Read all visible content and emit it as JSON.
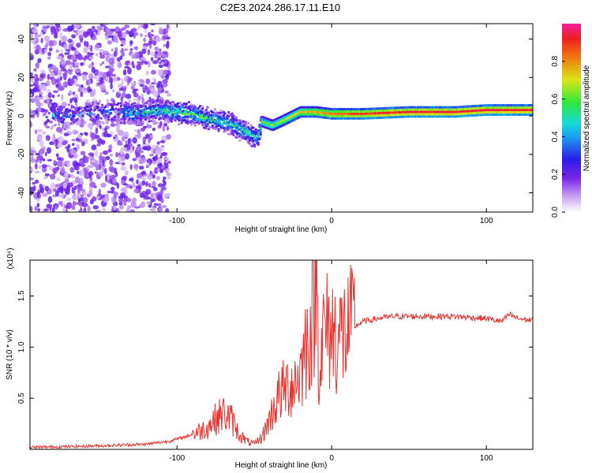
{
  "title": "C2E3.2024.286.17.11.E10",
  "chart_data": [
    {
      "type": "heatmap",
      "xlabel": "Height of straight line (km)",
      "ylabel": "Frequency (Hz)",
      "xlim": [
        -195,
        130
      ],
      "ylim": [
        -50,
        48
      ],
      "xticks": [
        -100,
        0,
        100
      ],
      "yticks": [
        -40,
        -20,
        0,
        20,
        40
      ],
      "colorbar": {
        "label": "Normalized spectral amplitude",
        "ticks": [
          "0.0",
          "0.2",
          "0.4",
          "0.6",
          "0.8"
        ],
        "tick_values": [
          0.0,
          0.2,
          0.4,
          0.6,
          0.8
        ],
        "range": [
          0,
          1
        ]
      },
      "ridge": [
        {
          "x": -170,
          "y": 0,
          "amp": 0.35
        },
        {
          "x": -150,
          "y": 2,
          "amp": 0.3
        },
        {
          "x": -125,
          "y": 2,
          "amp": 0.45
        },
        {
          "x": -110,
          "y": 3,
          "amp": 0.5
        },
        {
          "x": -95,
          "y": 2,
          "amp": 0.55
        },
        {
          "x": -85,
          "y": 0,
          "amp": 0.55
        },
        {
          "x": -75,
          "y": -2,
          "amp": 0.5
        },
        {
          "x": -65,
          "y": -4,
          "amp": 0.5
        },
        {
          "x": -55,
          "y": -8,
          "amp": 0.5
        },
        {
          "x": -48,
          "y": -12,
          "amp": 0.45
        },
        {
          "x": -45,
          "y": -3,
          "amp": 0.6
        },
        {
          "x": -38,
          "y": -5,
          "amp": 0.65
        },
        {
          "x": -30,
          "y": -2,
          "amp": 0.7
        },
        {
          "x": -20,
          "y": 2,
          "amp": 0.75
        },
        {
          "x": -10,
          "y": 2,
          "amp": 0.8
        },
        {
          "x": 0,
          "y": 1,
          "amp": 0.85
        },
        {
          "x": 20,
          "y": 1,
          "amp": 0.9
        },
        {
          "x": 50,
          "y": 2,
          "amp": 0.95
        },
        {
          "x": 80,
          "y": 2,
          "amp": 0.95
        },
        {
          "x": 100,
          "y": 3,
          "amp": 0.95
        },
        {
          "x": 130,
          "y": 3,
          "amp": 0.95
        }
      ]
    },
    {
      "type": "line",
      "xlabel": "Height of straight line (km)",
      "ylabel": "SNR (10 * v/v)",
      "multiplier": "(x10⁴)",
      "xlim": [
        -195,
        130
      ],
      "ylim": [
        0,
        1.85
      ],
      "xticks": [
        -100,
        0,
        100
      ],
      "yticks": [
        0.5,
        1.0,
        1.5
      ],
      "ytick_labels": [
        "0.5",
        "1.0",
        "1.5"
      ],
      "color": "#e8322e",
      "x": [
        -195,
        -160,
        -140,
        -120,
        -105,
        -95,
        -85,
        -80,
        -75,
        -70,
        -65,
        -60,
        -55,
        -50,
        -45,
        -40,
        -35,
        -30,
        -25,
        -20,
        -17,
        -15,
        -12,
        -10,
        -8,
        -5,
        0,
        5,
        10,
        20,
        30,
        40,
        60,
        80,
        100,
        110,
        115,
        120,
        125,
        130
      ],
      "y": [
        0.02,
        0.03,
        0.04,
        0.05,
        0.08,
        0.12,
        0.18,
        0.22,
        0.3,
        0.35,
        0.3,
        0.15,
        0.08,
        0.05,
        0.12,
        0.3,
        0.5,
        0.6,
        0.65,
        0.75,
        1.0,
        1.1,
        1.3,
        1.8,
        0.8,
        1.15,
        1.15,
        1.1,
        1.15,
        1.25,
        1.28,
        1.3,
        1.3,
        1.3,
        1.28,
        1.25,
        1.32,
        1.28,
        1.27,
        1.26
      ]
    }
  ]
}
